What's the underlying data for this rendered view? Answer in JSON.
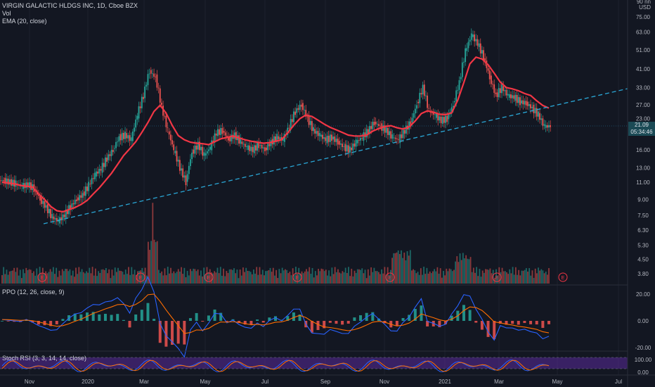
{
  "header": {
    "symbol_line": "VIRGIN GALACTIC HLDGS INC, 1D, Cboe BZX",
    "vol_label": "Vol",
    "ema_label": "EMA (20, close)"
  },
  "colors": {
    "background": "#131722",
    "up": "#26a69a",
    "down": "#ef5350",
    "ema": "#f23645",
    "trendline": "#2aa7d6",
    "ppo_line": "#2962ff",
    "ppo_signal": "#ff6d00",
    "stoch_k": "#2962ff",
    "stoch_d": "#ff6d00",
    "stoch_band": "#5a2a9a"
  },
  "price_axis": {
    "currency_top": "90 nn",
    "currency": "USD",
    "ticks": [
      "75.00",
      "63.00",
      "51.00",
      "41.00",
      "33.00",
      "27.00",
      "23.00",
      "16.00",
      "13.00",
      "11.00",
      "9.00",
      "7.50",
      "6.30",
      "5.30",
      "4.50",
      "3.80"
    ],
    "last_price": "21.09",
    "countdown": "05:34:46"
  },
  "ppo_pane": {
    "title": "PPO (12, 26, close, 9)",
    "ticks": [
      "20.00",
      "0.00",
      "-20.00"
    ]
  },
  "stoch_pane": {
    "title": "Stoch RSI (3, 3, 14, 14, close)",
    "ticks": [
      "100.00",
      "0.00"
    ]
  },
  "time_axis": [
    "Nov",
    "2020",
    "Mar",
    "May",
    "Jul",
    "Sep",
    "Nov",
    "2021",
    "Mar",
    "May",
    "Jul"
  ],
  "earnings_marker": "E",
  "chart_data": {
    "type": "candlestick",
    "scale": "log",
    "ylim": [
      3.5,
      90
    ],
    "ema_close": [
      11.0,
      10.9,
      10.8,
      10.6,
      10.5,
      10.4,
      9.6,
      9.0,
      8.3,
      7.9,
      7.8,
      8.0,
      8.2,
      8.5,
      8.9,
      9.6,
      10.3,
      11.2,
      12.2,
      13.5,
      15.0,
      16.2,
      17.6,
      19.6,
      22.0,
      25.0,
      26.9,
      24.5,
      21.3,
      18.9,
      18.0,
      17.5,
      17.3,
      17.2,
      17.0,
      17.6,
      18.2,
      18.5,
      18.8,
      18.4,
      18.0,
      17.7,
      17.5,
      17.3,
      17.4,
      17.7,
      18.0,
      19.5,
      21.3,
      23.0,
      24.0,
      23.6,
      22.6,
      21.6,
      20.8,
      20.2,
      19.6,
      19.0,
      18.8,
      18.8,
      19.0,
      19.9,
      20.5,
      21.0,
      21.2,
      20.7,
      20.4,
      20.9,
      22.4,
      24.4,
      25.2,
      24.8,
      24.2,
      24.1,
      24.6,
      28.5,
      35.0,
      43.5,
      47.0,
      46.0,
      43.0,
      39.0,
      35.2,
      33.0,
      32.5,
      31.8,
      30.8,
      30.1,
      28.3,
      26.8,
      26.0
    ],
    "high_segments": "candles rendered from close series",
    "close": [
      11.2,
      11.0,
      10.8,
      10.5,
      10.7,
      10.2,
      9.0,
      8.2,
      7.3,
      7.0,
      7.5,
      8.3,
      9.0,
      9.5,
      10.6,
      12.0,
      12.8,
      14.5,
      16.0,
      18.5,
      19.0,
      18.0,
      24.0,
      30.0,
      40.0,
      37.0,
      26.0,
      20.0,
      16.0,
      13.0,
      11.0,
      15.5,
      17.0,
      15.0,
      16.5,
      19.5,
      20.0,
      18.0,
      19.0,
      17.5,
      16.5,
      16.0,
      17.0,
      16.0,
      17.5,
      18.5,
      18.0,
      21.0,
      25.0,
      27.0,
      23.0,
      20.0,
      19.0,
      18.0,
      18.5,
      17.5,
      16.5,
      16.0,
      17.5,
      18.5,
      20.0,
      22.0,
      21.0,
      20.0,
      18.5,
      18.0,
      20.0,
      22.0,
      27.0,
      33.0,
      25.0,
      24.0,
      22.5,
      23.0,
      27.0,
      35.0,
      50.0,
      61.0,
      55.0,
      47.0,
      37.0,
      30.0,
      33.0,
      30.0,
      29.5,
      28.0,
      27.5,
      26.0,
      24.0,
      21.0,
      21.09
    ],
    "events": "earnings markers E at Nov, Feb, May, Aug, Nov, Mar, May"
  }
}
